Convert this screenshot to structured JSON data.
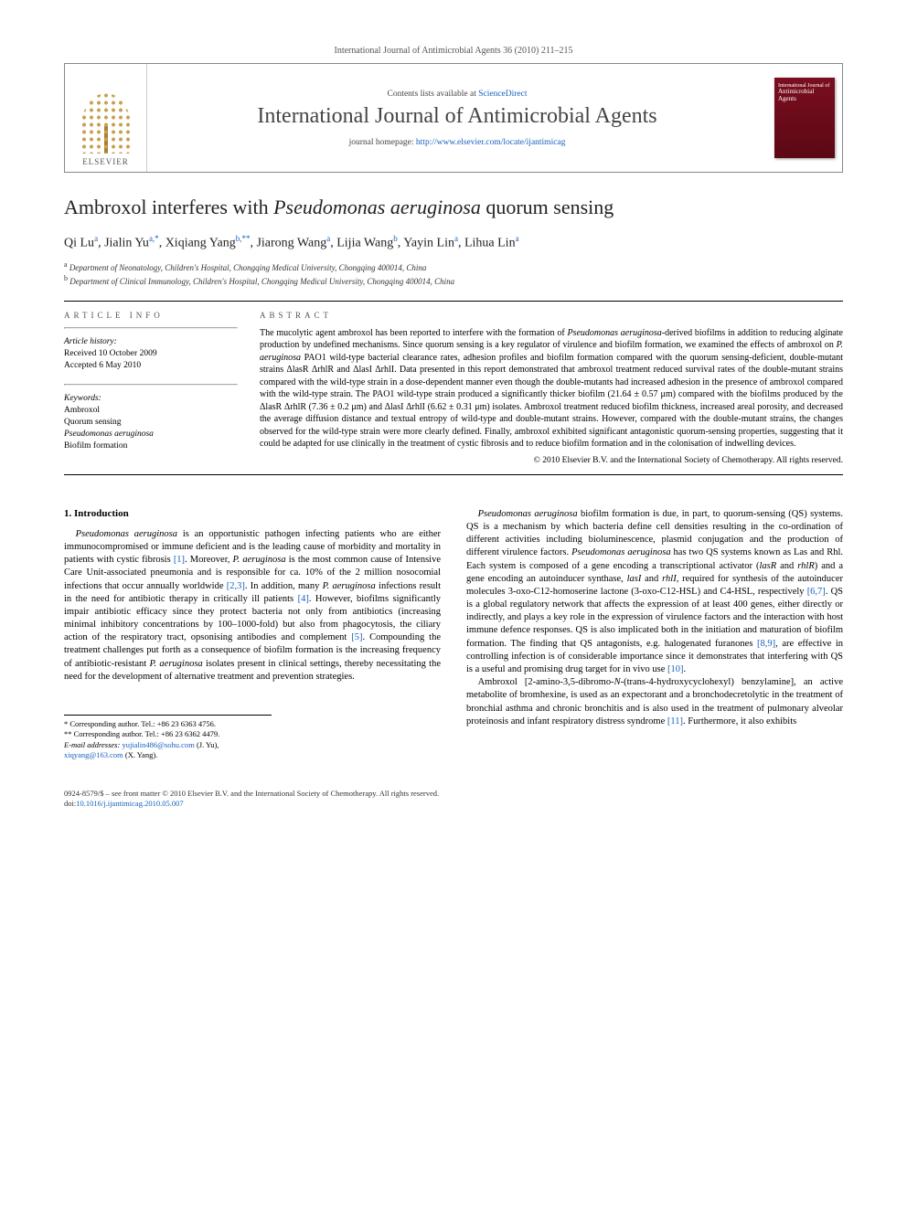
{
  "header": {
    "citation": "International Journal of Antimicrobial Agents 36 (2010) 211–215"
  },
  "masthead": {
    "publisher_label": "ELSEVIER",
    "contents_prefix": "Contents lists available at ",
    "contents_link": "ScienceDirect",
    "journal_name": "International Journal of Antimicrobial Agents",
    "homepage_prefix": "journal homepage: ",
    "homepage_url": "http://www.elsevier.com/locate/ijantimicag",
    "cover_text_top": "International Journal of",
    "cover_text_main": "Antimicrobial Agents"
  },
  "article": {
    "title_pre": "Ambroxol interferes with ",
    "title_species": "Pseudomonas aeruginosa",
    "title_post": " quorum sensing",
    "authors_html": "Qi Lu|a|, Jialin Yu|a,*|, Xiqiang Yang|b,**|, Jiarong Wang|a|, Lijia Wang|b|, Yayin Lin|a|, Lihua Lin|a",
    "affiliations": [
      {
        "sup": "a",
        "text": "Department of Neonatology, Children's Hospital, Chongqing Medical University, Chongqing 400014, China"
      },
      {
        "sup": "b",
        "text": "Department of Clinical Immunology, Children's Hospital, Chongqing Medical University, Chongqing 400014, China"
      }
    ]
  },
  "info": {
    "heading": "article info",
    "history_label": "Article history:",
    "received": "Received 10 October 2009",
    "accepted": "Accepted 6 May 2010",
    "keywords_label": "Keywords:",
    "keywords": [
      "Ambroxol",
      "Quorum sensing",
      "Pseudomonas aeruginosa",
      "Biofilm formation"
    ]
  },
  "abstract": {
    "heading": "abstract",
    "text": "The mucolytic agent ambroxol has been reported to interfere with the formation of <i>Pseudomonas aeruginosa</i>-derived biofilms in addition to reducing alginate production by undefined mechanisms. Since quorum sensing is a key regulator of virulence and biofilm formation, we examined the effects of ambroxol on <i>P. aeruginosa</i> PAO1 wild-type bacterial clearance rates, adhesion profiles and biofilm formation compared with the quorum sensing-deficient, double-mutant strains ΔlasR ΔrhlR and ΔlasI ΔrhlI. Data presented in this report demonstrated that ambroxol treatment reduced survival rates of the double-mutant strains compared with the wild-type strain in a dose-dependent manner even though the double-mutants had increased adhesion in the presence of ambroxol compared with the wild-type strain. The PAO1 wild-type strain produced a significantly thicker biofilm (21.64 ± 0.57 μm) compared with the biofilms produced by the ΔlasR ΔrhlR (7.36 ± 0.2 μm) and ΔlasI ΔrhlI (6.62 ± 0.31 μm) isolates. Ambroxol treatment reduced biofilm thickness, increased areal porosity, and decreased the average diffusion distance and textual entropy of wild-type and double-mutant strains. However, compared with the double-mutant strains, the changes observed for the wild-type strain were more clearly defined. Finally, ambroxol exhibited significant antagonistic quorum-sensing properties, suggesting that it could be adapted for use clinically in the treatment of cystic fibrosis and to reduce biofilm formation and in the colonisation of indwelling devices.",
    "copyright": "© 2010 Elsevier B.V. and the International Society of Chemotherapy. All rights reserved."
  },
  "body": {
    "section_heading": "1. Introduction",
    "col1_p1": "<i>Pseudomonas aeruginosa</i> is an opportunistic pathogen infecting patients who are either immunocompromised or immune deficient and is the leading cause of morbidity and mortality in patients with cystic fibrosis <span class=\"ref\">[1]</span>. Moreover, <i>P. aeruginosa</i> is the most common cause of Intensive Care Unit-associated pneumonia and is responsible for ca. 10% of the 2 million nosocomial infections that occur annually worldwide <span class=\"ref\">[2,3]</span>. In addition, many <i>P. aeruginosa</i> infections result in the need for antibiotic therapy in critically ill patients <span class=\"ref\">[4]</span>. However, biofilms significantly impair antibiotic efficacy since they protect bacteria not only from antibiotics (increasing minimal inhibitory concentrations by 100–1000-fold) but also from phagocytosis, the ciliary action of the respiratory tract, opsonising antibodies and complement <span class=\"ref\">[5]</span>. Compounding the treatment challenges put forth as a consequence of biofilm formation is the increasing frequency of antibiotic-resistant <i>P. aeruginosa</i> isolates present in clinical settings, thereby necessitating the need for the development of alternative treatment and prevention strategies.",
    "col2_p1": "<i>Pseudomonas aeruginosa</i> biofilm formation is due, in part, to quorum-sensing (QS) systems. QS is a mechanism by which bacteria define cell densities resulting in the co-ordination of different activities including bioluminescence, plasmid conjugation and the production of different virulence factors. <i>Pseudomonas aeruginosa</i> has two QS systems known as Las and Rhl. Each system is composed of a gene encoding a transcriptional activator (<i>lasR</i> and <i>rhlR</i>) and a gene encoding an autoinducer synthase, <i>lasI</i> and <i>rhlI</i>, required for synthesis of the autoinducer molecules 3-oxo-C12-homoserine lactone (3-oxo-C12-HSL) and C4-HSL, respectively <span class=\"ref\">[6,7]</span>. QS is a global regulatory network that affects the expression of at least 400 genes, either directly or indirectly, and plays a key role in the expression of virulence factors and the interaction with host immune defence responses. QS is also implicated both in the initiation and maturation of biofilm formation. The finding that QS antagonists, e.g. halogenated furanones <span class=\"ref\">[8,9]</span>, are effective in controlling infection is of considerable importance since it demonstrates that interfering with QS is a useful and promising drug target for in vivo use <span class=\"ref\">[10]</span>.",
    "col2_p2": "Ambroxol [2-amino-3,5-dibromo-<i>N</i>-(trans-4-hydroxycyclohexyl) benzylamine], an active metabolite of bromhexine, is used as an expectorant and a bronchodecretolytic in the treatment of bronchial asthma and chronic bronchitis and is also used in the treatment of pulmonary alveolar proteinosis and infant respiratory distress syndrome <span class=\"ref\">[11]</span>. Furthermore, it also exhibits"
  },
  "footnotes": {
    "corr1": "* Corresponding author. Tel.: +86 23 6363 4756.",
    "corr2": "** Corresponding author. Tel.: +86 23 6362 4479.",
    "email_label": "E-mail addresses:",
    "email1": "yujialin486@sohu.com",
    "email1_who": "(J. Yu),",
    "email2": "xiqyang@163.com",
    "email2_who": "(X. Yang)."
  },
  "footer": {
    "line1": "0924-8579/$ – see front matter © 2010 Elsevier B.V. and the International Society of Chemotherapy. All rights reserved.",
    "doi_label": "doi:",
    "doi": "10.1016/j.ijantimicag.2010.05.007"
  },
  "colors": {
    "link": "#1560bd",
    "cover_bg": "#7a0e1e",
    "text": "#000000",
    "muted": "#555555"
  }
}
